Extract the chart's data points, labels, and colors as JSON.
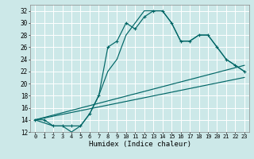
{
  "xlabel": "Humidex (Indice chaleur)",
  "bg_color": "#cce8e8",
  "line_color": "#006666",
  "grid_color": "#ffffff",
  "xlim": [
    -0.5,
    23.5
  ],
  "ylim": [
    12,
    33
  ],
  "xticks": [
    0,
    1,
    2,
    3,
    4,
    5,
    6,
    7,
    8,
    9,
    10,
    11,
    12,
    13,
    14,
    15,
    16,
    17,
    18,
    19,
    20,
    21,
    22,
    23
  ],
  "yticks": [
    12,
    14,
    16,
    18,
    20,
    22,
    24,
    26,
    28,
    30,
    32
  ],
  "lines": [
    {
      "x": [
        0,
        1,
        2,
        3,
        4,
        5,
        6,
        7,
        8,
        9,
        10,
        11,
        12,
        13,
        14,
        15,
        16,
        17,
        18,
        19,
        20,
        21,
        22,
        23
      ],
      "y": [
        14,
        14,
        13,
        13,
        13,
        13,
        15,
        18,
        26,
        27,
        30,
        29,
        31,
        32,
        32,
        30,
        27,
        27,
        28,
        28,
        26,
        24,
        23,
        22
      ],
      "marker": true
    },
    {
      "x": [
        0,
        2,
        3,
        4,
        5,
        6,
        7,
        8,
        9,
        10,
        11,
        12,
        13,
        14,
        15,
        16,
        17,
        18,
        19,
        20,
        21,
        22,
        23
      ],
      "y": [
        14,
        13,
        13,
        12,
        13,
        15,
        18,
        22,
        24,
        28,
        30,
        32,
        32,
        32,
        30,
        27,
        27,
        28,
        28,
        26,
        24,
        23,
        22
      ],
      "marker": false
    },
    {
      "x": [
        0,
        23
      ],
      "y": [
        14,
        23
      ],
      "marker": false
    },
    {
      "x": [
        0,
        23
      ],
      "y": [
        14,
        21
      ],
      "marker": false
    }
  ]
}
